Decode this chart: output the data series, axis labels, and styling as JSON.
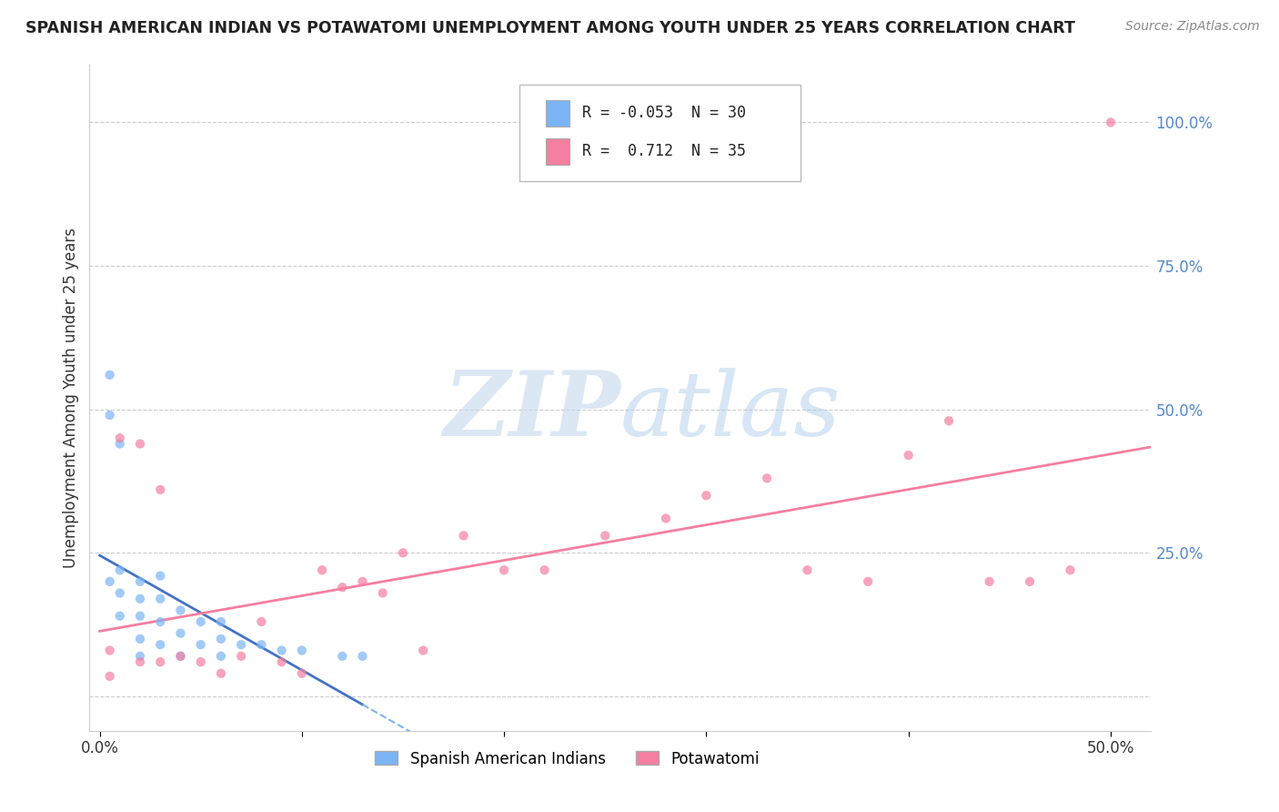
{
  "title": "SPANISH AMERICAN INDIAN VS POTAWATOMI UNEMPLOYMENT AMONG YOUTH UNDER 25 YEARS CORRELATION CHART",
  "source": "Source: ZipAtlas.com",
  "ylabel": "Unemployment Among Youth under 25 years",
  "y_tick_labels": [
    "",
    "25.0%",
    "50.0%",
    "75.0%",
    "100.0%"
  ],
  "y_tick_vals": [
    0.0,
    0.25,
    0.5,
    0.75,
    1.0
  ],
  "x_tick_labels": [
    "0.0%",
    "",
    "",
    "",
    "",
    "50.0%"
  ],
  "x_tick_vals": [
    0.0,
    0.1,
    0.2,
    0.3,
    0.4,
    0.5
  ],
  "watermark_zip": "ZIP",
  "watermark_atlas": "atlas",
  "sai_color": "#7ab4f5",
  "pot_color": "#f47fa0",
  "sai_line_color": "#4472c4",
  "pot_line_color": "#f47fa0",
  "sai_dash_color": "#7ab4f5",
  "background_color": "#ffffff",
  "grid_color": "#cccccc",
  "legend_r1": "R = -0.053  N = 30",
  "legend_r2": "R =  0.712  N = 35",
  "legend_sai": "Spanish American Indians",
  "legend_pot": "Potawatomi",
  "sai_x": [
    0.005,
    0.005,
    0.005,
    0.01,
    0.01,
    0.01,
    0.01,
    0.02,
    0.02,
    0.02,
    0.02,
    0.02,
    0.03,
    0.03,
    0.03,
    0.03,
    0.04,
    0.04,
    0.04,
    0.05,
    0.05,
    0.06,
    0.06,
    0.06,
    0.07,
    0.08,
    0.09,
    0.1,
    0.12,
    0.13
  ],
  "sai_y": [
    0.56,
    0.49,
    0.2,
    0.44,
    0.22,
    0.18,
    0.14,
    0.2,
    0.17,
    0.14,
    0.1,
    0.07,
    0.21,
    0.17,
    0.13,
    0.09,
    0.15,
    0.11,
    0.07,
    0.13,
    0.09,
    0.13,
    0.1,
    0.07,
    0.09,
    0.09,
    0.08,
    0.08,
    0.07,
    0.07
  ],
  "pot_x": [
    0.005,
    0.005,
    0.01,
    0.02,
    0.02,
    0.03,
    0.03,
    0.04,
    0.05,
    0.06,
    0.07,
    0.08,
    0.09,
    0.1,
    0.11,
    0.12,
    0.13,
    0.14,
    0.15,
    0.16,
    0.18,
    0.2,
    0.22,
    0.25,
    0.28,
    0.3,
    0.33,
    0.35,
    0.38,
    0.4,
    0.42,
    0.44,
    0.46,
    0.48,
    0.5
  ],
  "pot_y": [
    0.08,
    0.035,
    0.45,
    0.44,
    0.06,
    0.36,
    0.06,
    0.07,
    0.06,
    0.04,
    0.07,
    0.13,
    0.06,
    0.04,
    0.22,
    0.19,
    0.2,
    0.18,
    0.25,
    0.08,
    0.28,
    0.22,
    0.22,
    0.28,
    0.31,
    0.35,
    0.38,
    0.22,
    0.2,
    0.42,
    0.48,
    0.2,
    0.2,
    0.22,
    1.0
  ],
  "xlim": [
    -0.005,
    0.52
  ],
  "ylim": [
    -0.06,
    1.1
  ]
}
